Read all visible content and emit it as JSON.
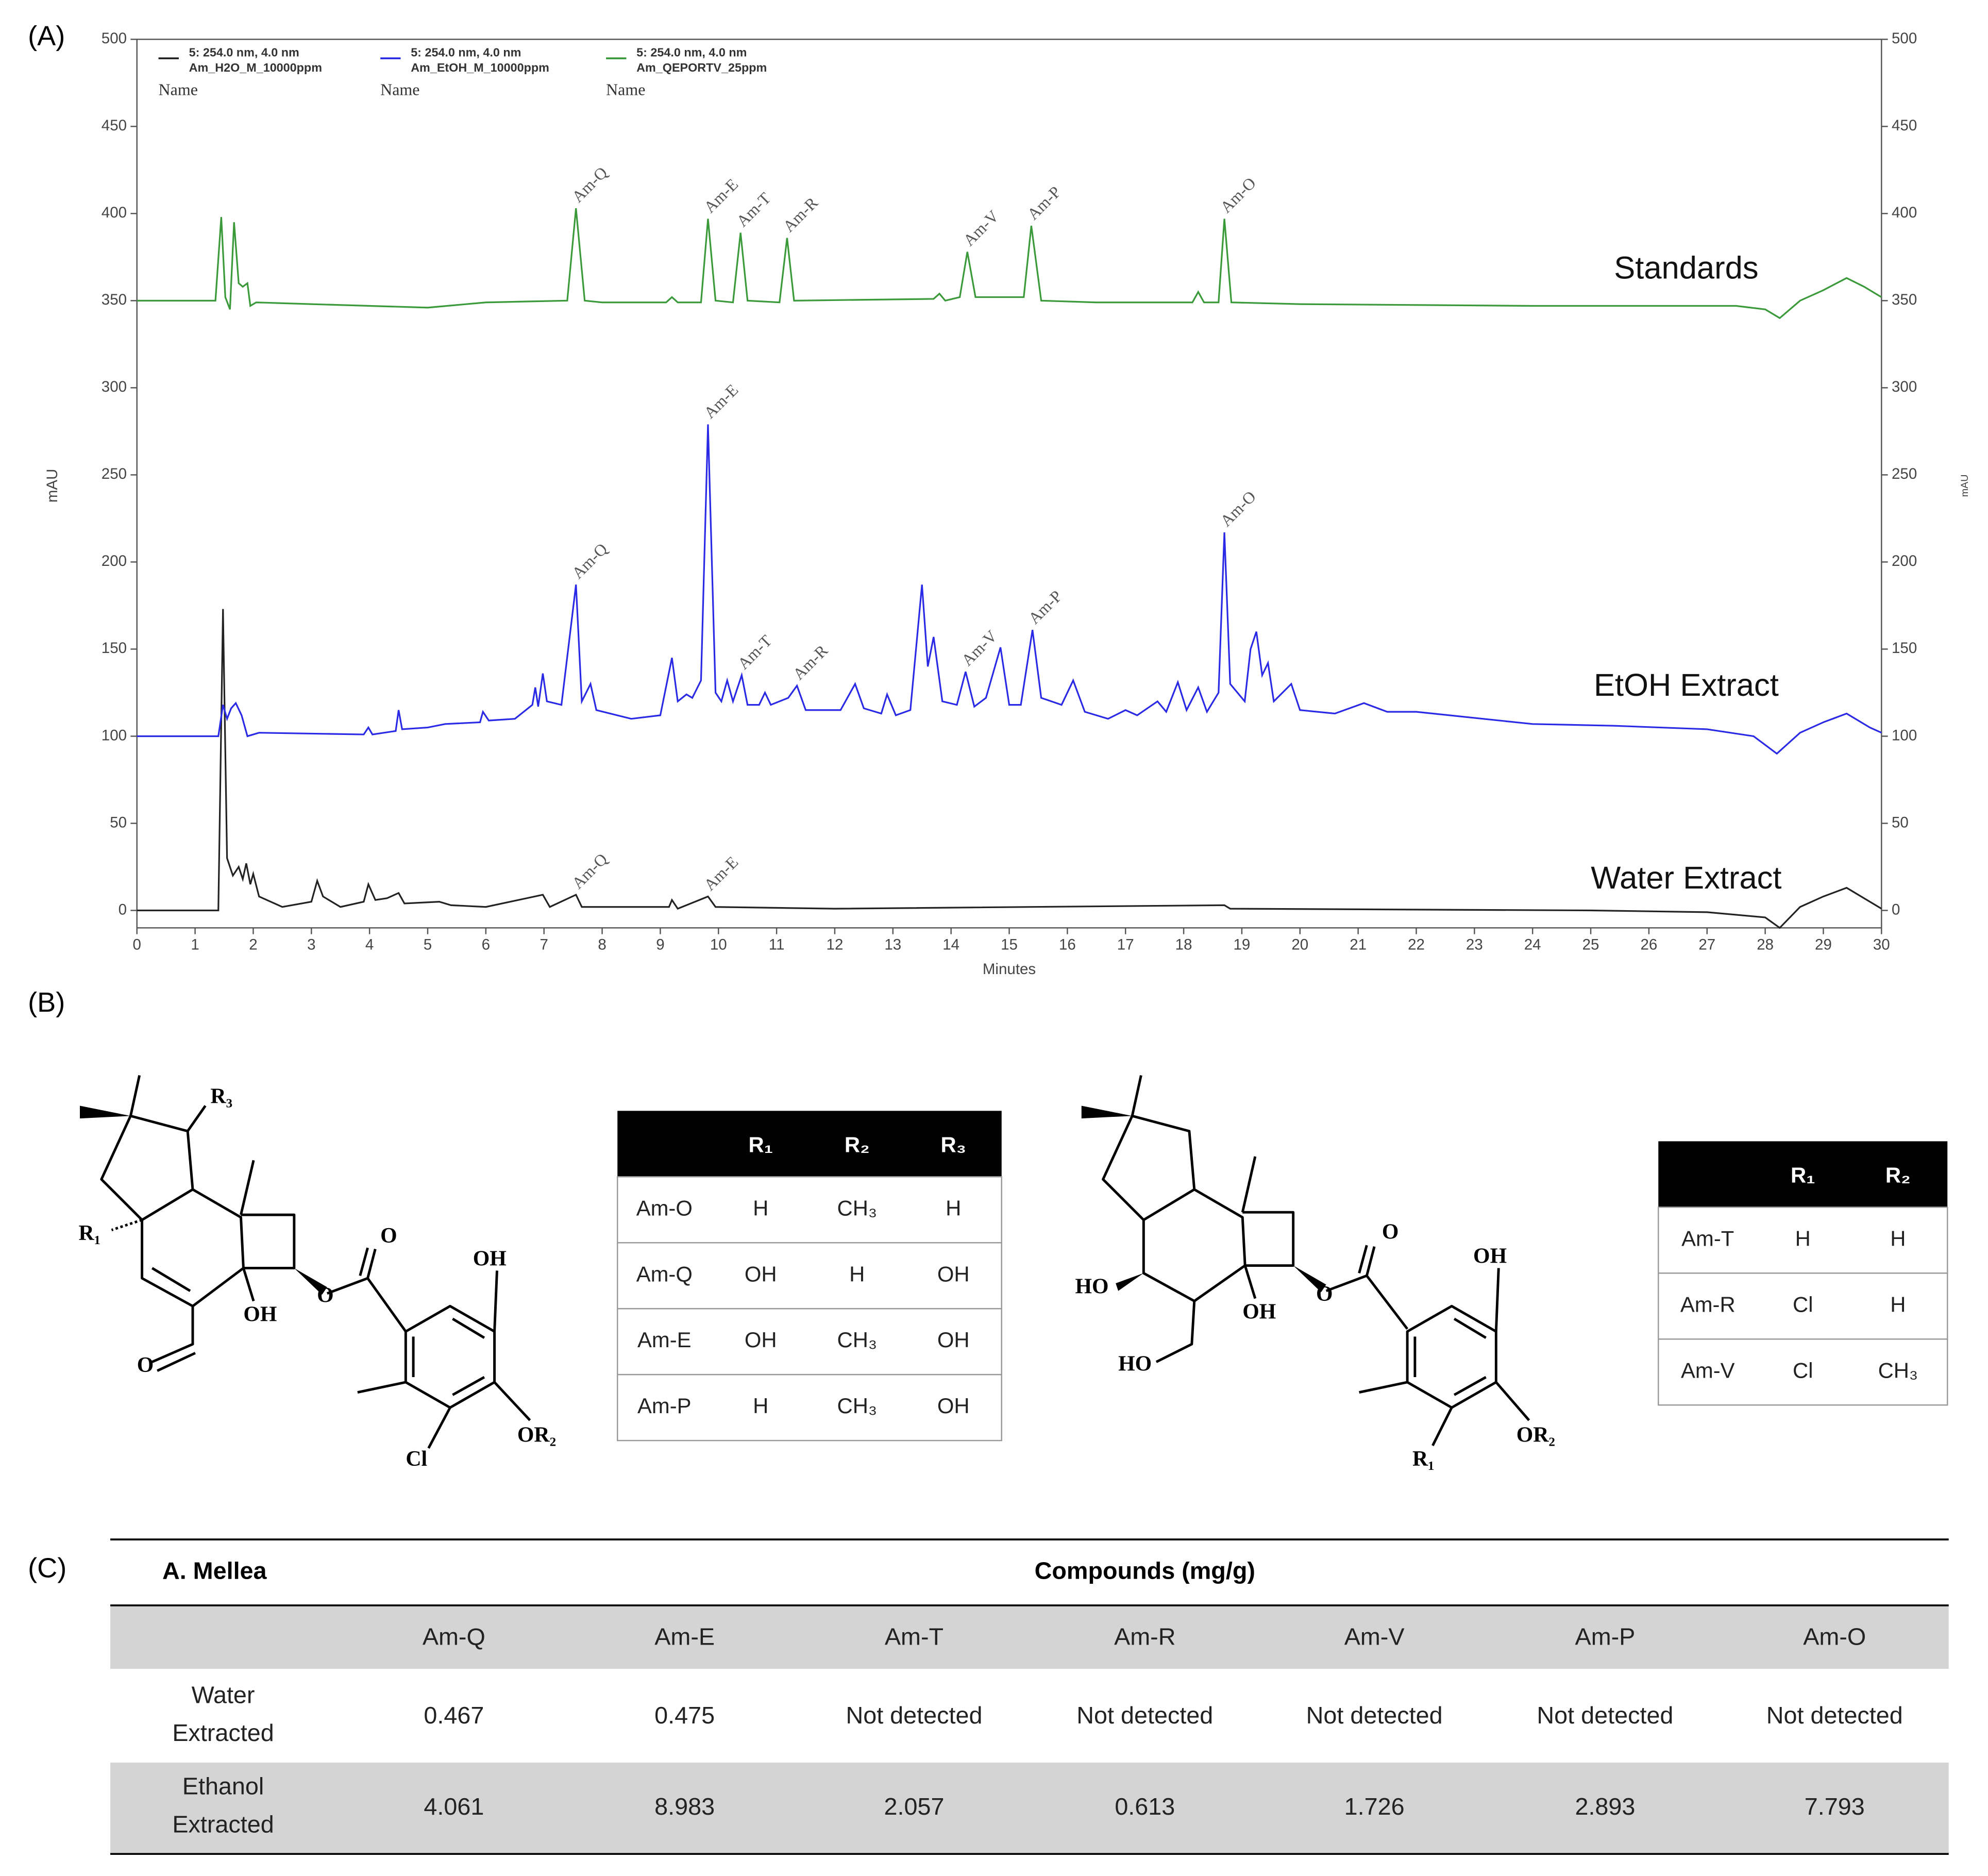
{
  "chart_data": {
    "type": "line",
    "panel_label": "(A)",
    "xlabel": "Minutes",
    "ylabel": "mAU",
    "y2label": "mAU",
    "xlim": [
      0,
      30
    ],
    "xticks": [
      0,
      1,
      2,
      3,
      4,
      5,
      6,
      7,
      8,
      9,
      10,
      11,
      12,
      13,
      14,
      15,
      16,
      17,
      18,
      19,
      20,
      21,
      22,
      23,
      24,
      25,
      26,
      27,
      28,
      29,
      30
    ],
    "ylim": [
      -10,
      500
    ],
    "yticks": [
      0,
      50,
      100,
      150,
      200,
      250,
      300,
      350,
      400,
      450,
      500
    ],
    "y2lim": [
      -10,
      500
    ],
    "y2ticks": [
      0,
      50,
      100,
      150,
      200,
      250,
      300,
      350,
      400,
      450,
      500
    ],
    "series": [
      {
        "name": "Am_H2O_M_10000ppm",
        "header": "5: 254.0 nm, 4.0 nm",
        "sub": "Name",
        "label": "Water Extract",
        "color": "#222222",
        "x": [
          0,
          1.4,
          1.48,
          1.55,
          1.65,
          1.75,
          1.82,
          1.88,
          1.95,
          2.0,
          2.1,
          2.5,
          3.0,
          3.1,
          3.2,
          3.5,
          3.9,
          3.98,
          4.1,
          4.3,
          4.5,
          4.6,
          5.2,
          5.4,
          6,
          6.98,
          7.1,
          7.55,
          7.65,
          9.15,
          9.2,
          9.3,
          9.82,
          9.95,
          12,
          18.7,
          18.8,
          25,
          27,
          28,
          28.25,
          28.6,
          29,
          29.4,
          29.8,
          30
        ],
        "values": [
          0,
          0,
          173,
          30,
          20,
          25,
          18,
          27,
          15,
          21,
          8,
          2,
          5,
          17,
          8,
          2,
          5,
          15,
          6,
          7,
          10,
          4,
          5,
          3,
          2,
          9,
          2,
          9,
          2,
          2,
          6,
          1,
          8,
          2,
          1,
          3,
          1,
          0,
          -1,
          -4,
          -10,
          2,
          8,
          13,
          5,
          1
        ]
      },
      {
        "name": "Am_EtOH_M_10000ppm",
        "header": "5: 254.0 nm, 4.0 nm",
        "sub": "Name",
        "label": "EtOH Extract",
        "color": "#2a2ae6",
        "x": [
          0,
          1.4,
          1.48,
          1.55,
          1.62,
          1.7,
          1.8,
          1.9,
          2.1,
          3.9,
          3.98,
          4.05,
          4.45,
          4.5,
          4.56,
          5,
          5.3,
          5.9,
          5.95,
          6.05,
          6.5,
          6.8,
          6.85,
          6.9,
          6.98,
          7.05,
          7.3,
          7.55,
          7.65,
          7.8,
          7.9,
          8.5,
          9,
          9.2,
          9.3,
          9.45,
          9.55,
          9.7,
          9.82,
          9.95,
          10.05,
          10.15,
          10.25,
          10.4,
          10.5,
          10.7,
          10.8,
          10.9,
          11.2,
          11.35,
          11.5,
          12.1,
          12.35,
          12.5,
          12.8,
          12.9,
          13.05,
          13.3,
          13.5,
          13.6,
          13.7,
          13.85,
          14.1,
          14.25,
          14.4,
          14.6,
          14.85,
          15,
          15.2,
          15.4,
          15.55,
          15.9,
          16.1,
          16.3,
          16.7,
          17,
          17.2,
          17.55,
          17.7,
          17.9,
          18.05,
          18.25,
          18.4,
          18.6,
          18.7,
          18.8,
          19.05,
          19.15,
          19.25,
          19.35,
          19.45,
          19.55,
          19.85,
          20,
          20.6,
          21.1,
          21.5,
          22,
          24,
          25.4,
          27,
          27.8,
          28.2,
          28.6,
          29,
          29.4,
          29.8,
          30
        ],
        "values": [
          100,
          100,
          118,
          110,
          116,
          119,
          112,
          100,
          102,
          101,
          105,
          101,
          103,
          115,
          104,
          105,
          107,
          108,
          114,
          109,
          110,
          118,
          128,
          117,
          136,
          120,
          118,
          187,
          120,
          130,
          115,
          110,
          112,
          145,
          120,
          124,
          122,
          132,
          279,
          125,
          120,
          132,
          120,
          135,
          118,
          118,
          125,
          118,
          122,
          129,
          115,
          115,
          130,
          116,
          113,
          124,
          112,
          115,
          187,
          140,
          157,
          120,
          118,
          137,
          117,
          122,
          151,
          118,
          118,
          161,
          122,
          118,
          132,
          114,
          110,
          115,
          112,
          120,
          114,
          131,
          115,
          128,
          114,
          125,
          217,
          130,
          120,
          150,
          160,
          135,
          142,
          120,
          130,
          115,
          113,
          119,
          114,
          114,
          107,
          106,
          104,
          100,
          90,
          102,
          108,
          113,
          105,
          102
        ]
      },
      {
        "name": "Am_QEPORTV_25ppm",
        "header": "5: 254.0 nm, 4.0 nm",
        "sub": "Name",
        "label": "Standards",
        "color": "#3a9a3a",
        "x": [
          0,
          1.35,
          1.45,
          1.52,
          1.6,
          1.67,
          1.75,
          1.82,
          1.9,
          1.95,
          2.05,
          3,
          5,
          6,
          7.4,
          7.55,
          7.7,
          8,
          9.1,
          9.2,
          9.3,
          9.7,
          9.82,
          9.95,
          10.25,
          10.38,
          10.5,
          11.05,
          11.18,
          11.3,
          13.7,
          13.8,
          13.9,
          14.15,
          14.28,
          14.42,
          15.25,
          15.38,
          15.55,
          16.5,
          18.15,
          18.25,
          18.35,
          18.6,
          18.7,
          18.82,
          20,
          24,
          27.5,
          28,
          28.25,
          28.6,
          29,
          29.4,
          29.7,
          30
        ],
        "values": [
          350,
          350,
          398,
          352,
          345,
          395,
          360,
          358,
          360,
          347,
          349,
          348,
          346,
          349,
          350,
          403,
          350,
          349,
          349,
          352,
          349,
          349,
          397,
          350,
          349,
          389,
          350,
          349,
          386,
          350,
          351,
          354,
          350,
          352,
          378,
          352,
          352,
          393,
          350,
          349,
          349,
          355,
          349,
          349,
          397,
          349,
          348,
          347,
          347,
          345,
          340,
          350,
          356,
          363,
          358,
          352
        ]
      }
    ],
    "annotations": [
      {
        "text": "Am-Q",
        "x": 7.55,
        "y": 403
      },
      {
        "text": "Am-E",
        "x": 9.82,
        "y": 397
      },
      {
        "text": "Am-T",
        "x": 10.38,
        "y": 389
      },
      {
        "text": "Am-R",
        "x": 11.18,
        "y": 386
      },
      {
        "text": "Am-V",
        "x": 14.28,
        "y": 378
      },
      {
        "text": "Am-P",
        "x": 15.38,
        "y": 393
      },
      {
        "text": "Am-O",
        "x": 18.7,
        "y": 397
      },
      {
        "text": "Am-Q",
        "x": 7.55,
        "y": 187
      },
      {
        "text": "Am-E",
        "x": 9.82,
        "y": 279
      },
      {
        "text": "Am-T",
        "x": 10.4,
        "y": 135
      },
      {
        "text": "Am-R",
        "x": 11.35,
        "y": 129
      },
      {
        "text": "Am-V",
        "x": 14.25,
        "y": 137
      },
      {
        "text": "Am-P",
        "x": 15.4,
        "y": 161
      },
      {
        "text": "Am-O",
        "x": 18.7,
        "y": 217
      },
      {
        "text": "Am-Q",
        "x": 7.55,
        "y": 9
      },
      {
        "text": "Am-E",
        "x": 9.82,
        "y": 8
      }
    ]
  },
  "panel_b": {
    "label": "(B)",
    "structure1": {
      "labels": [
        "R₃",
        "R₁",
        "OH",
        "O",
        "O",
        "OH",
        "OR₂",
        "Cl"
      ]
    },
    "table1": {
      "header": [
        "R₁",
        "R₂",
        "R₃"
      ],
      "rows": [
        [
          "Am-O",
          "H",
          "CH₃",
          "H"
        ],
        [
          "Am-Q",
          "OH",
          "H",
          "OH"
        ],
        [
          "Am-E",
          "OH",
          "CH₃",
          "OH"
        ],
        [
          "Am-P",
          "H",
          "CH₃",
          "OH"
        ]
      ]
    },
    "structure2": {
      "labels": [
        "HO",
        "HO",
        "OH",
        "O",
        "OH",
        "OR₂",
        "R₁"
      ]
    },
    "table2": {
      "header": [
        "R₁",
        "R₂"
      ],
      "rows": [
        [
          "Am-T",
          "H",
          "H"
        ],
        [
          "Am-R",
          "Cl",
          "H"
        ],
        [
          "Am-V",
          "Cl",
          "CH₃"
        ]
      ]
    }
  },
  "panel_c": {
    "label": "(C)",
    "row_header": "A. Mellea",
    "title": "Compounds (mg/g)",
    "columns": [
      "Am-Q",
      "Am-E",
      "Am-T",
      "Am-R",
      "Am-V",
      "Am-P",
      "Am-O"
    ],
    "rows": [
      {
        "label": [
          "Water",
          "Extracted"
        ],
        "values": [
          0.467,
          0.475,
          "Not detected",
          "Not detected",
          "Not detected",
          "Not detected",
          "Not detected"
        ]
      },
      {
        "label": [
          "Ethanol",
          "Extracted"
        ],
        "values": [
          4.061,
          8.983,
          2.057,
          0.613,
          1.726,
          2.893,
          7.793
        ]
      }
    ]
  }
}
